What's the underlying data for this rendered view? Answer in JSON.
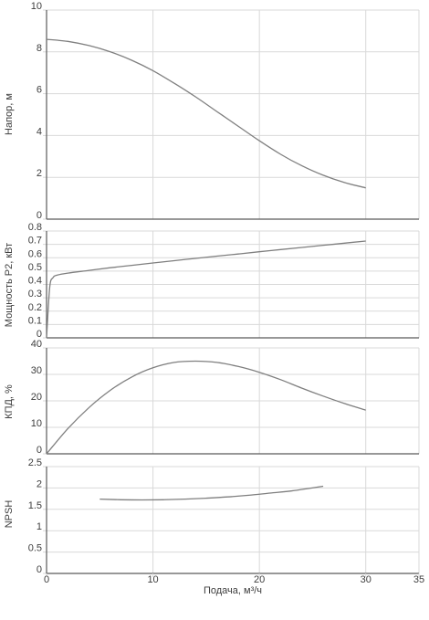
{
  "chart_data": [
    {
      "type": "line",
      "ylabel": "Напор, м",
      "xlabel": "",
      "xlim": [
        0,
        35
      ],
      "ylim": [
        0,
        10
      ],
      "xticks": [
        "0",
        "10",
        "20",
        "30",
        "35"
      ],
      "yticks": [
        "0",
        "2",
        "4",
        "6",
        "8",
        "10"
      ],
      "grid": true,
      "series": [
        {
          "x": [
            0,
            2,
            4,
            6,
            8,
            10,
            12,
            14,
            16,
            18,
            20,
            22,
            24,
            26,
            28,
            30
          ],
          "y": [
            8.6,
            8.5,
            8.3,
            8.0,
            7.6,
            7.1,
            6.5,
            5.85,
            5.15,
            4.45,
            3.75,
            3.1,
            2.55,
            2.1,
            1.75,
            1.5
          ]
        }
      ]
    },
    {
      "type": "line",
      "ylabel": "Мощность Р2, кВт",
      "xlabel": "",
      "xlim": [
        0,
        35
      ],
      "ylim": [
        0,
        0.8
      ],
      "xticks": [],
      "yticks": [
        "0",
        "0.1",
        "0.2",
        "0.3",
        "0.4",
        "0.5",
        "0.6",
        "0.7",
        "0.8"
      ],
      "grid": true,
      "series": [
        {
          "x": [
            0,
            0.3,
            0.6,
            1,
            2,
            4,
            6,
            8,
            10,
            12,
            14,
            16,
            18,
            20,
            22,
            24,
            26,
            28,
            30
          ],
          "y": [
            0.0,
            0.38,
            0.45,
            0.47,
            0.485,
            0.505,
            0.525,
            0.543,
            0.561,
            0.578,
            0.595,
            0.612,
            0.628,
            0.645,
            0.661,
            0.677,
            0.693,
            0.709,
            0.725
          ]
        }
      ]
    },
    {
      "type": "line",
      "ylabel": "КПД, %",
      "xlabel": "",
      "xlim": [
        0,
        35
      ],
      "ylim": [
        0,
        40
      ],
      "xticks": [],
      "yticks": [
        "0",
        "10",
        "20",
        "30",
        "40"
      ],
      "grid": true,
      "series": [
        {
          "x": [
            0,
            2,
            4,
            6,
            8,
            10,
            12,
            14,
            16,
            18,
            20,
            22,
            24,
            26,
            28,
            30
          ],
          "y": [
            0,
            9.5,
            17.5,
            24,
            29,
            32.5,
            34.5,
            35.0,
            34.5,
            33,
            30.8,
            28,
            24.8,
            21.8,
            19,
            16.5
          ]
        }
      ]
    },
    {
      "type": "line",
      "ylabel": "NPSH",
      "xlabel": "Подача, м³/ч",
      "xlim": [
        0,
        35
      ],
      "ylim": [
        0,
        2.5
      ],
      "xticks": [
        "0",
        "10",
        "20",
        "30",
        "35"
      ],
      "yticks": [
        "0",
        "0.5",
        "1",
        "1.5",
        "2",
        "2.5"
      ],
      "grid": true,
      "series": [
        {
          "x": [
            5,
            7,
            9,
            11,
            13,
            15,
            17,
            19,
            21,
            23,
            26
          ],
          "y": [
            1.74,
            1.725,
            1.72,
            1.725,
            1.74,
            1.76,
            1.79,
            1.83,
            1.88,
            1.93,
            2.04
          ]
        }
      ]
    }
  ]
}
